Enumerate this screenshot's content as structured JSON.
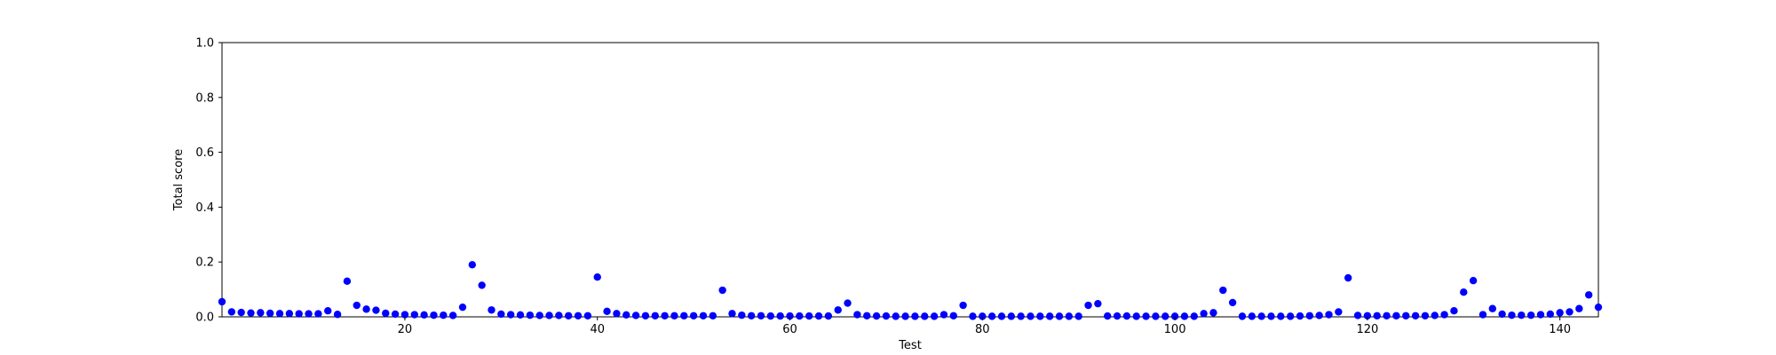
{
  "chart_data": {
    "type": "scatter",
    "xlabel": "Test",
    "ylabel": "Total score",
    "xlim": [
      1,
      144
    ],
    "ylim": [
      0,
      1.0
    ],
    "xticks": [
      20,
      40,
      60,
      80,
      100,
      120,
      140
    ],
    "yticks": [
      0.0,
      0.2,
      0.4,
      0.6,
      0.8,
      1.0
    ],
    "ytick_labels": [
      "0.0",
      "0.2",
      "0.4",
      "0.6",
      "0.8",
      "1.0"
    ],
    "grid": false,
    "marker_color": "#0000ff",
    "series": [
      {
        "x": [
          1,
          2,
          3,
          4,
          5,
          6,
          7,
          8,
          9,
          10,
          11,
          12,
          13,
          14,
          15,
          16,
          17,
          18,
          19,
          20,
          21,
          22,
          23,
          24,
          25,
          26,
          27,
          28,
          29,
          30,
          31,
          32,
          33,
          34,
          35,
          36,
          37,
          38,
          39,
          40,
          41,
          42,
          43,
          44,
          45,
          46,
          47,
          48,
          49,
          50,
          51,
          52,
          53,
          54,
          55,
          56,
          57,
          58,
          59,
          60,
          61,
          62,
          63,
          64,
          65,
          66,
          67,
          68,
          69,
          70,
          71,
          72,
          73,
          74,
          75,
          76,
          77,
          78,
          79,
          80,
          81,
          82,
          83,
          84,
          85,
          86,
          87,
          88,
          89,
          90,
          91,
          92,
          93,
          94,
          95,
          96,
          97,
          98,
          99,
          100,
          101,
          102,
          103,
          104,
          105,
          106,
          107,
          108,
          109,
          110,
          111,
          112,
          113,
          114,
          115,
          116,
          117,
          118,
          119,
          120,
          121,
          122,
          123,
          124,
          125,
          126,
          127,
          128,
          129,
          130,
          131,
          132,
          133,
          134,
          135,
          136,
          137,
          138,
          139,
          140,
          141,
          142,
          143,
          144
        ],
        "y": [
          0.055,
          0.018,
          0.016,
          0.014,
          0.015,
          0.013,
          0.012,
          0.012,
          0.011,
          0.011,
          0.011,
          0.022,
          0.009,
          0.13,
          0.042,
          0.028,
          0.024,
          0.013,
          0.01,
          0.008,
          0.008,
          0.007,
          0.006,
          0.006,
          0.005,
          0.035,
          0.19,
          0.115,
          0.025,
          0.01,
          0.008,
          0.007,
          0.006,
          0.005,
          0.005,
          0.005,
          0.004,
          0.004,
          0.004,
          0.145,
          0.02,
          0.012,
          0.007,
          0.005,
          0.004,
          0.004,
          0.004,
          0.004,
          0.004,
          0.004,
          0.004,
          0.004,
          0.097,
          0.012,
          0.006,
          0.004,
          0.004,
          0.003,
          0.003,
          0.003,
          0.003,
          0.003,
          0.003,
          0.003,
          0.025,
          0.05,
          0.008,
          0.004,
          0.003,
          0.003,
          0.002,
          0.002,
          0.002,
          0.002,
          0.002,
          0.008,
          0.004,
          0.042,
          0.002,
          0.002,
          0.002,
          0.002,
          0.002,
          0.002,
          0.002,
          0.002,
          0.002,
          0.002,
          0.002,
          0.002,
          0.042,
          0.048,
          0.003,
          0.003,
          0.003,
          0.002,
          0.002,
          0.002,
          0.002,
          0.002,
          0.002,
          0.002,
          0.012,
          0.015,
          0.097,
          0.052,
          0.002,
          0.002,
          0.002,
          0.002,
          0.002,
          0.002,
          0.003,
          0.004,
          0.005,
          0.008,
          0.018,
          0.142,
          0.005,
          0.004,
          0.004,
          0.004,
          0.004,
          0.004,
          0.004,
          0.004,
          0.005,
          0.008,
          0.022,
          0.09,
          0.132,
          0.008,
          0.03,
          0.01,
          0.006,
          0.006,
          0.006,
          0.008,
          0.01,
          0.015,
          0.018,
          0.03,
          0.08,
          0.035
        ]
      }
    ]
  }
}
